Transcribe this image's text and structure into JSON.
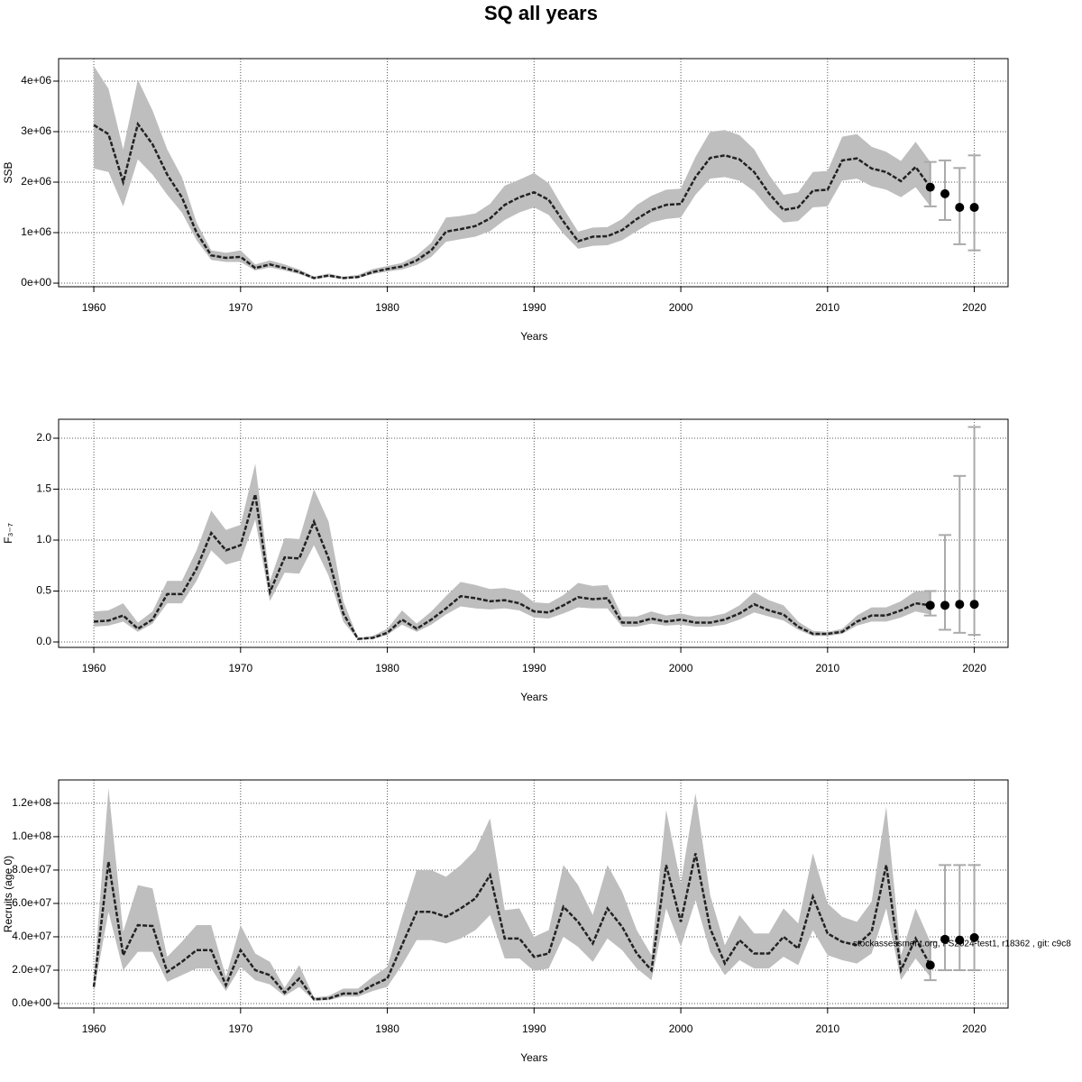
{
  "title": "SQ all years",
  "chart_data": [
    {
      "type": "line",
      "ylabel": "SSB",
      "xlabel": "Years",
      "color": "#222222",
      "band_color": "#bebebe",
      "errorbar_color": "#aaaaaa",
      "grid": true,
      "xlim": [
        1957.6,
        2022.3
      ],
      "ylim": [
        -71000.0,
        4446000.0
      ],
      "xticks": [
        1960,
        1970,
        1980,
        1990,
        2000,
        2010,
        2020
      ],
      "yticks": [
        {
          "value": 0,
          "label": "0e+00"
        },
        {
          "value": 1000000.0,
          "label": "1e+06"
        },
        {
          "value": 2000000.0,
          "label": "2e+06"
        },
        {
          "value": 3000000.0,
          "label": "3e+06"
        },
        {
          "value": 4000000.0,
          "label": "4e+06"
        }
      ],
      "x": [
        1960,
        1961,
        1962,
        1963,
        1964,
        1965,
        1966,
        1967,
        1968,
        1969,
        1970,
        1971,
        1972,
        1973,
        1974,
        1975,
        1976,
        1977,
        1978,
        1979,
        1980,
        1981,
        1982,
        1983,
        1984,
        1985,
        1986,
        1987,
        1988,
        1989,
        1990,
        1991,
        1992,
        1993,
        1994,
        1995,
        1996,
        1997,
        1998,
        1999,
        2000,
        2001,
        2002,
        2003,
        2004,
        2005,
        2006,
        2007,
        2008,
        2009,
        2010,
        2011,
        2012,
        2013,
        2014,
        2015,
        2016,
        2017
      ],
      "values": [
        3130000.0,
        2950000.0,
        2000000.0,
        3150000.0,
        2750000.0,
        2150000.0,
        1700000.0,
        1000000.0,
        550000.0,
        500000.0,
        520000.0,
        300000.0,
        370000.0,
        300000.0,
        220000.0,
        100000.0,
        150000.0,
        100000.0,
        120000.0,
        220000.0,
        280000.0,
        330000.0,
        450000.0,
        650000.0,
        1020000.0,
        1070000.0,
        1130000.0,
        1280000.0,
        1550000.0,
        1700000.0,
        1800000.0,
        1650000.0,
        1220000.0,
        830000.0,
        920000.0,
        930000.0,
        1050000.0,
        1270000.0,
        1450000.0,
        1550000.0,
        1570000.0,
        2100000.0,
        2480000.0,
        2530000.0,
        2450000.0,
        2200000.0,
        1780000.0,
        1450000.0,
        1500000.0,
        1830000.0,
        1850000.0,
        2430000.0,
        2470000.0,
        2270000.0,
        2200000.0,
        2020000.0,
        2300000.0,
        1900000.0
      ],
      "lower": [
        2270000.0,
        2200000.0,
        1520000.0,
        2450000.0,
        2150000.0,
        1750000.0,
        1400000.0,
        850000.0,
        460000.0,
        420000.0,
        420000.0,
        250000.0,
        310000.0,
        250000.0,
        180000.0,
        80000.0,
        120000.0,
        80000.0,
        100000.0,
        180000.0,
        230000.0,
        270000.0,
        360000.0,
        520000.0,
        820000.0,
        870000.0,
        920000.0,
        1030000.0,
        1250000.0,
        1400000.0,
        1500000.0,
        1350000.0,
        980000.0,
        680000.0,
        740000.0,
        750000.0,
        850000.0,
        1030000.0,
        1200000.0,
        1270000.0,
        1300000.0,
        1750000.0,
        2070000.0,
        2100000.0,
        2030000.0,
        1820000.0,
        1470000.0,
        1200000.0,
        1230000.0,
        1500000.0,
        1520000.0,
        2030000.0,
        2070000.0,
        1920000.0,
        1850000.0,
        1700000.0,
        1900000.0,
        1520000.0
      ],
      "upper": [
        4300000.0,
        3850000.0,
        2650000.0,
        4030000.0,
        3420000.0,
        2650000.0,
        2100000.0,
        1200000.0,
        650000.0,
        600000.0,
        650000.0,
        370000.0,
        450000.0,
        370000.0,
        270000.0,
        130000.0,
        190000.0,
        130000.0,
        160000.0,
        280000.0,
        340000.0,
        400000.0,
        550000.0,
        800000.0,
        1300000.0,
        1330000.0,
        1380000.0,
        1570000.0,
        1930000.0,
        2050000.0,
        2180000.0,
        1980000.0,
        1480000.0,
        1020000.0,
        1100000.0,
        1110000.0,
        1270000.0,
        1550000.0,
        1730000.0,
        1850000.0,
        1870000.0,
        2500000.0,
        3000000.0,
        3030000.0,
        2930000.0,
        2650000.0,
        2150000.0,
        1750000.0,
        1800000.0,
        2200000.0,
        2220000.0,
        2900000.0,
        2950000.0,
        2700000.0,
        2600000.0,
        2420000.0,
        2800000.0,
        2400000.0
      ],
      "forecast": {
        "x": [
          2017,
          2018,
          2019,
          2020
        ],
        "values": [
          1900000.0,
          1770000.0,
          1500000.0,
          1500000.0
        ],
        "lower": [
          1520000.0,
          1250000.0,
          770000.0,
          650000.0
        ],
        "upper": [
          2400000.0,
          2430000.0,
          2280000.0,
          2530000.0
        ]
      }
    },
    {
      "type": "line",
      "ylabel": "F₃₋₇",
      "xlabel": "Years",
      "color": "#222222",
      "band_color": "#bebebe",
      "errorbar_color": "#aaaaaa",
      "grid": true,
      "xlim": [
        1957.6,
        2022.3
      ],
      "ylim": [
        -0.053,
        2.186
      ],
      "xticks": [
        1960,
        1970,
        1980,
        1990,
        2000,
        2010,
        2020
      ],
      "yticks": [
        {
          "value": 0,
          "label": "0.0"
        },
        0.5,
        {
          "value": 1,
          "label": "1.0"
        },
        1.5,
        {
          "value": 2,
          "label": "2.0"
        }
      ],
      "x": [
        1960,
        1961,
        1962,
        1963,
        1964,
        1965,
        1966,
        1967,
        1968,
        1969,
        1970,
        1971,
        1972,
        1973,
        1974,
        1975,
        1976,
        1977,
        1978,
        1979,
        1980,
        1981,
        1982,
        1983,
        1984,
        1985,
        1986,
        1987,
        1988,
        1989,
        1990,
        1991,
        1992,
        1993,
        1994,
        1995,
        1996,
        1997,
        1998,
        1999,
        2000,
        2001,
        2002,
        2003,
        2004,
        2005,
        2006,
        2007,
        2008,
        2009,
        2010,
        2011,
        2012,
        2013,
        2014,
        2015,
        2016,
        2017
      ],
      "values": [
        0.2,
        0.21,
        0.26,
        0.13,
        0.22,
        0.47,
        0.47,
        0.72,
        1.07,
        0.9,
        0.95,
        1.45,
        0.49,
        0.83,
        0.82,
        1.18,
        0.82,
        0.28,
        0.03,
        0.04,
        0.09,
        0.22,
        0.13,
        0.22,
        0.33,
        0.45,
        0.43,
        0.4,
        0.41,
        0.38,
        0.3,
        0.29,
        0.36,
        0.44,
        0.42,
        0.43,
        0.19,
        0.19,
        0.23,
        0.2,
        0.22,
        0.19,
        0.19,
        0.22,
        0.28,
        0.37,
        0.31,
        0.27,
        0.15,
        0.08,
        0.08,
        0.1,
        0.2,
        0.26,
        0.26,
        0.31,
        0.38,
        0.36
      ],
      "lower": [
        0.15,
        0.16,
        0.2,
        0.1,
        0.18,
        0.38,
        0.38,
        0.6,
        0.9,
        0.76,
        0.8,
        1.2,
        0.4,
        0.68,
        0.67,
        0.95,
        0.65,
        0.2,
        0.02,
        0.03,
        0.07,
        0.17,
        0.1,
        0.17,
        0.27,
        0.35,
        0.33,
        0.32,
        0.33,
        0.31,
        0.24,
        0.23,
        0.28,
        0.34,
        0.33,
        0.33,
        0.15,
        0.15,
        0.18,
        0.16,
        0.17,
        0.15,
        0.15,
        0.17,
        0.22,
        0.29,
        0.25,
        0.21,
        0.12,
        0.06,
        0.06,
        0.08,
        0.16,
        0.2,
        0.2,
        0.24,
        0.3,
        0.27
      ],
      "upper": [
        0.3,
        0.31,
        0.38,
        0.19,
        0.3,
        0.6,
        0.6,
        0.9,
        1.29,
        1.1,
        1.15,
        1.75,
        0.6,
        1.02,
        1.01,
        1.5,
        1.18,
        0.4,
        0.04,
        0.06,
        0.13,
        0.31,
        0.18,
        0.3,
        0.45,
        0.59,
        0.56,
        0.52,
        0.53,
        0.5,
        0.39,
        0.38,
        0.46,
        0.58,
        0.55,
        0.56,
        0.25,
        0.25,
        0.3,
        0.26,
        0.28,
        0.25,
        0.25,
        0.28,
        0.36,
        0.49,
        0.41,
        0.36,
        0.2,
        0.11,
        0.1,
        0.13,
        0.26,
        0.34,
        0.34,
        0.4,
        0.5,
        0.5
      ],
      "forecast": {
        "x": [
          2017,
          2018,
          2019,
          2020
        ],
        "values": [
          0.36,
          0.36,
          0.37,
          0.37
        ],
        "lower": [
          0.26,
          0.12,
          0.09,
          0.07
        ],
        "upper": [
          0.5,
          1.05,
          1.63,
          2.11
        ]
      }
    },
    {
      "type": "line",
      "ylabel": "Recruits (age 0)",
      "xlabel": "Years",
      "color": "#222222",
      "band_color": "#bebebe",
      "errorbar_color": "#aaaaaa",
      "grid": true,
      "annotation": "stockassessment.org, FS2024-test1, r18362 , git: c9c8",
      "xlim": [
        1957.6,
        2022.3
      ],
      "ylim": [
        -2700000.0,
        134000000.0
      ],
      "xticks": [
        1960,
        1970,
        1980,
        1990,
        2000,
        2010,
        2020
      ],
      "yticks": [
        {
          "value": 0,
          "label": "0.0e+00"
        },
        {
          "value": 20000000.0,
          "label": "2.0e+07"
        },
        {
          "value": 40000000.0,
          "label": "4.0e+07"
        },
        {
          "value": 60000000.0,
          "label": "6.0e+07"
        },
        {
          "value": 80000000.0,
          "label": "8.0e+07"
        },
        {
          "value": 100000000.0,
          "label": "1.0e+08"
        },
        {
          "value": 120000000.0,
          "label": "1.2e+08"
        }
      ],
      "x": [
        1960,
        1961,
        1962,
        1963,
        1964,
        1965,
        1966,
        1967,
        1968,
        1969,
        1970,
        1971,
        1972,
        1973,
        1974,
        1975,
        1976,
        1977,
        1978,
        1979,
        1980,
        1981,
        1982,
        1983,
        1984,
        1985,
        1986,
        1987,
        1988,
        1989,
        1990,
        1991,
        1992,
        1993,
        1994,
        1995,
        1996,
        1997,
        1998,
        1999,
        2000,
        2001,
        2002,
        2003,
        2004,
        2005,
        2006,
        2007,
        2008,
        2009,
        2010,
        2011,
        2012,
        2013,
        2014,
        2015,
        2016,
        2017
      ],
      "values": [
        10000000.0,
        85000000.0,
        29000000.0,
        47000000.0,
        46500000.0,
        19000000.0,
        25000000.0,
        32000000.0,
        32000000.0,
        11000000.0,
        32000000.0,
        20000000.0,
        17000000.0,
        6500000.0,
        15000000.0,
        2500000.0,
        3000000.0,
        6000000.0,
        6000000.0,
        11000000.0,
        15000000.0,
        35000000.0,
        55000000.0,
        55000000.0,
        52000000.0,
        57000000.0,
        63000000.0,
        77000000.0,
        39000000.0,
        39000000.0,
        28000000.0,
        30000000.0,
        58000000.0,
        49000000.0,
        36000000.0,
        57000000.0,
        46000000.0,
        30000000.0,
        20000000.0,
        83000000.0,
        49000000.0,
        90000000.0,
        45000000.0,
        24000000.0,
        38000000.0,
        30000000.0,
        30000000.0,
        40000000.0,
        33000000.0,
        64000000.0,
        42000000.0,
        37000000.0,
        35000000.0,
        43000000.0,
        83000000.0,
        20000000.0,
        39000000.0,
        23000000.0
      ],
      "lower": [
        7000000.0,
        55000000.0,
        20000000.0,
        31000000.0,
        31000000.0,
        13000000.0,
        17000000.0,
        21000000.0,
        21000000.0,
        7500000.0,
        22000000.0,
        14000000.0,
        11500000.0,
        4500000.0,
        10000000.0,
        1800000.0,
        2000000.0,
        4200000.0,
        4200000.0,
        7500000.0,
        10000000.0,
        23000000.0,
        38000000.0,
        38000000.0,
        36000000.0,
        39000000.0,
        44000000.0,
        53000000.0,
        27000000.0,
        27000000.0,
        19500000.0,
        21000000.0,
        40000000.0,
        34000000.0,
        25000000.0,
        39000000.0,
        32000000.0,
        21000000.0,
        14000000.0,
        57000000.0,
        34000000.0,
        62000000.0,
        31000000.0,
        17000000.0,
        26000000.0,
        21000000.0,
        21000000.0,
        28000000.0,
        23000000.0,
        44000000.0,
        29000000.0,
        26000000.0,
        24000000.0,
        30000000.0,
        57000000.0,
        14000000.0,
        27000000.0,
        16000000.0
      ],
      "upper": [
        14000000.0,
        129000000.0,
        43000000.0,
        71000000.0,
        69000000.0,
        28000000.0,
        37000000.0,
        47000000.0,
        47000000.0,
        16000000.0,
        47000000.0,
        30000000.0,
        25000000.0,
        9500000.0,
        23000000.0,
        3700000.0,
        4500000.0,
        9000000.0,
        9000000.0,
        16000000.0,
        22000000.0,
        52000000.0,
        80000000.0,
        80000000.0,
        76000000.0,
        83000000.0,
        92000000.0,
        111000000.0,
        56000000.0,
        57000000.0,
        40000000.0,
        44000000.0,
        83000000.0,
        71000000.0,
        53000000.0,
        83000000.0,
        67000000.0,
        44000000.0,
        29000000.0,
        116000000.0,
        72000000.0,
        126000000.0,
        65000000.0,
        35000000.0,
        53000000.0,
        42000000.0,
        42000000.0,
        57000000.0,
        48000000.0,
        90000000.0,
        60000000.0,
        52000000.0,
        49000000.0,
        61000000.0,
        118000000.0,
        29000000.0,
        57000000.0,
        37000000.0
      ],
      "forecast": {
        "x": [
          2017,
          2018,
          2019,
          2020
        ],
        "values": [
          23000000.0,
          38500000.0,
          38000000.0,
          39500000.0
        ],
        "lower": [
          14000000.0,
          20000000.0,
          20000000.0,
          20000000.0
        ],
        "upper": [
          37000000.0,
          83000000.0,
          83000000.0,
          83000000.0
        ]
      }
    }
  ]
}
